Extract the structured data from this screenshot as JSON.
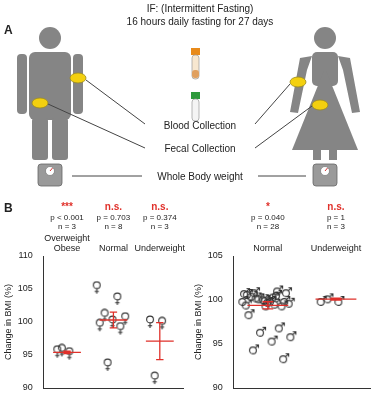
{
  "panel_a": {
    "letter": "A",
    "title": [
      "IF: (Intermittent Fasting)",
      "16 hours daily fasting for 27 days"
    ],
    "labels": [
      "Blood Collection",
      "Fecal Collection",
      "Whole Body weight"
    ]
  },
  "panel_b": {
    "letter": "B"
  },
  "chart_data": [
    {
      "type": "scatter",
      "y_label": "Change in BMI (%)",
      "categories": [
        "Overweight Obese",
        "Normal",
        "Underweight"
      ],
      "significance": [
        "***",
        "n.s.",
        "n.s."
      ],
      "p_values": [
        "p < 0.001",
        "p = 0.703",
        "p = 0.374"
      ],
      "n": [
        "n = 3",
        "n = 8",
        "n = 3"
      ],
      "values": [
        [
          95.5,
          95.2,
          95.7
        ],
        [
          105.2,
          103.5,
          101,
          100.5,
          100,
          99.5,
          99,
          93.5
        ],
        [
          100,
          99.8,
          91.5
        ]
      ],
      "mean": [
        95.4,
        100.3,
        97.1
      ],
      "error": [
        0.2,
        1.2,
        2.8
      ],
      "color": "#333333",
      "marker": "female",
      "ylim": [
        90,
        110
      ],
      "yticks": [
        90,
        95,
        100,
        105,
        110
      ],
      "grid": false,
      "tick_labels": "y"
    },
    {
      "type": "scatter",
      "y_label": "Change in BMI (%)",
      "categories": [
        "Normal",
        "Underweight"
      ],
      "significance": [
        "*",
        "n.s."
      ],
      "p_values": [
        "p = 0.040",
        "p = 1"
      ],
      "n": [
        "n = 28",
        "n = 3"
      ],
      "values": [
        [
          100,
          100.5,
          101,
          100,
          99.5,
          100.8,
          101.2,
          100.3,
          99.8,
          100,
          100.6,
          99.5,
          100.2,
          100.9,
          99.7,
          100.4,
          101,
          99.9,
          98.5,
          97,
          96.5,
          96,
          95.5,
          94.5,
          93.5,
          100.1,
          99.6,
          100.7
        ],
        [
          100,
          100,
          100.3
        ]
      ],
      "mean": [
        99.4,
        100.1
      ],
      "error": [
        0.4,
        0.1
      ],
      "color": "#333333",
      "marker": "male",
      "ylim": [
        90,
        105
      ],
      "yticks": [
        90,
        95,
        100,
        105
      ],
      "grid": false,
      "tick_labels": "y"
    }
  ]
}
